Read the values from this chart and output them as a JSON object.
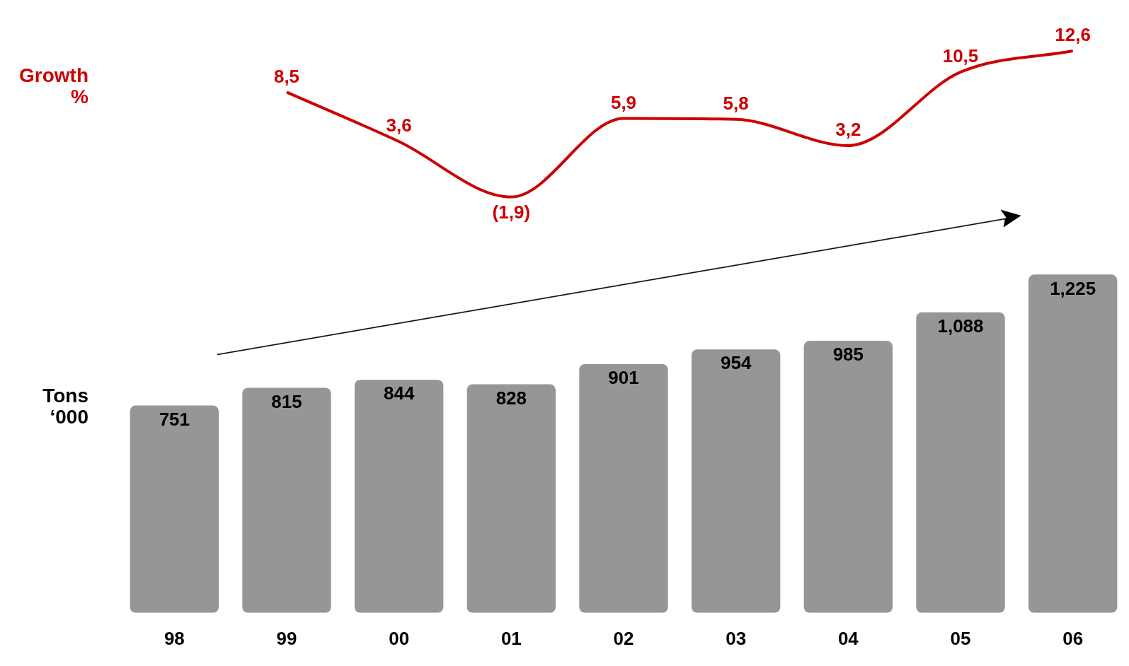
{
  "chart_data": [
    {
      "type": "line",
      "ylabel": "Growth %",
      "categories": [
        "98",
        "99",
        "00",
        "01",
        "02",
        "03",
        "04",
        "05",
        "06"
      ],
      "series": [
        {
          "color": "#cc0000",
          "values": [
            null,
            8.5,
            3.6,
            -1.9,
            5.9,
            5.8,
            3.2,
            10.5,
            12.6
          ],
          "value_labels": [
            null,
            "8,5",
            "3,6",
            "(1,9)",
            "5,9",
            "5,8",
            "3,2",
            "10,5",
            "12,6"
          ]
        }
      ],
      "tick_labels": false,
      "marker": "none",
      "legend": false
    },
    {
      "type": "bar",
      "ylabel": "Tons ‘000",
      "categories": [
        "98",
        "99",
        "00",
        "01",
        "02",
        "03",
        "04",
        "05",
        "06"
      ],
      "series": [
        {
          "color": "#969696",
          "values": [
            751,
            815,
            844,
            828,
            901,
            954,
            985,
            1088,
            1225
          ],
          "value_labels": [
            "751",
            "815",
            "844",
            "828",
            "901",
            "954",
            "985",
            "1,088",
            "1,225"
          ]
        }
      ],
      "tick_labels": "x",
      "legend": false
    }
  ]
}
